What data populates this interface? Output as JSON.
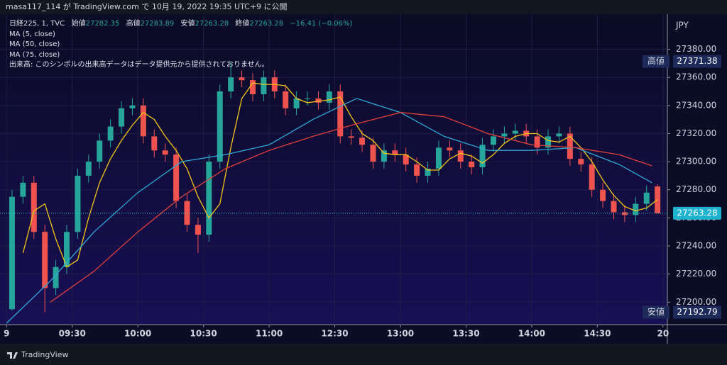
{
  "header": {
    "published": "masa117_114 が TradingView.com で 10月 19, 2022 19:35 UTC+9 に公開"
  },
  "footer": {
    "brand": "TradingView"
  },
  "chart_data": {
    "type": "candlestick",
    "symbol": "日経225, 1, TVC",
    "ohlc_labels": [
      "始値",
      "高値",
      "安値",
      "終値"
    ],
    "change": "−16.41 (−0.06%)",
    "volume_note": "出来高: このシンボルの出来高データはデータ提供元から提供されておりません。",
    "currency": "JPY",
    "up_color": "#26a69a",
    "down_color": "#ef5350",
    "x": [
      2.5,
      7.5,
      12.5,
      17.5,
      22.5,
      27.5,
      32.5,
      37.5,
      42.5,
      47.5,
      52.5,
      57.5,
      62.5,
      67.5,
      72.5,
      77.5,
      82.5,
      87.5,
      92.5,
      97.5,
      102.5,
      107.5,
      112.5,
      117.5,
      122.5,
      127.5,
      132.5,
      137.5,
      142.5,
      147.5,
      152.5,
      157.5,
      162.5,
      167.5,
      172.5,
      177.5,
      182.5,
      187.5,
      192.5,
      197.5,
      202.5,
      207.5,
      212.5,
      217.5,
      222.5,
      227.5,
      232.5,
      237.5,
      242.5,
      247.5,
      252.5,
      257.5,
      262.5,
      267.5,
      272.5,
      277.5,
      282.5,
      287.5,
      292.5,
      297.5
    ],
    "open": [
      27195,
      27275,
      27285,
      27250,
      27210,
      27225,
      27250,
      27290,
      27300,
      27315,
      27325,
      27338,
      27340,
      27318,
      27308,
      27305,
      27272,
      27255,
      27248,
      27300,
      27350,
      27360,
      27358,
      27348,
      27360,
      27350,
      27338,
      27345,
      27345,
      27342,
      27350,
      27318,
      27317,
      27312,
      27300,
      27308,
      27305,
      27298,
      27290,
      27295,
      27310,
      27308,
      27300,
      27296,
      27312,
      27318,
      27320,
      27322,
      27318,
      27310,
      27318,
      27320,
      27302,
      27298,
      27280,
      27272,
      27264,
      27262,
      27270,
      27282.35
    ],
    "high": [
      27280,
      27290,
      27290,
      27255,
      27230,
      27255,
      27295,
      27305,
      27320,
      27330,
      27343,
      27345,
      27345,
      27323,
      27313,
      27310,
      27277,
      27260,
      27305,
      27355,
      27371.38,
      27365,
      27363,
      27365,
      27365,
      27355,
      27350,
      27350,
      27350,
      27355,
      27355,
      27323,
      27322,
      27317,
      27313,
      27313,
      27310,
      27303,
      27300,
      27315,
      27315,
      27313,
      27305,
      27317,
      27323,
      27325,
      27327,
      27327,
      27323,
      27323,
      27325,
      27325,
      27307,
      27303,
      27285,
      27277,
      27269,
      27275,
      27283,
      27283.89
    ],
    "low": [
      27194,
      27270,
      27245,
      27192.79,
      27205,
      27220,
      27245,
      27285,
      27295,
      27310,
      27320,
      27333,
      27313,
      27303,
      27300,
      27267,
      27250,
      27235,
      27243,
      27295,
      27345,
      27353,
      27343,
      27343,
      27345,
      27333,
      27333,
      27340,
      27337,
      27337,
      27313,
      27312,
      27307,
      27295,
      27295,
      27300,
      27293,
      27285,
      27285,
      27290,
      27303,
      27295,
      27291,
      27291,
      27307,
      27313,
      27315,
      27313,
      27305,
      27305,
      27313,
      27297,
      27293,
      27275,
      27267,
      27259,
      27257,
      27257,
      27265,
      27263.28
    ],
    "close": [
      27275,
      27285,
      27250,
      27210,
      27225,
      27250,
      27290,
      27300,
      27315,
      27325,
      27338,
      27340,
      27318,
      27308,
      27305,
      27272,
      27255,
      27248,
      27300,
      27350,
      27360,
      27358,
      27348,
      27360,
      27350,
      27338,
      27345,
      27345,
      27342,
      27350,
      27318,
      27317,
      27312,
      27300,
      27308,
      27305,
      27298,
      27290,
      27295,
      27310,
      27308,
      27300,
      27296,
      27312,
      27318,
      27320,
      27322,
      27318,
      27310,
      27318,
      27320,
      27302,
      27298,
      27280,
      27272,
      27264,
      27262,
      27270,
      27278,
      27263.28
    ],
    "series": [
      {
        "name": "MA (5, close)",
        "color": "#f5c518",
        "values": [
          null,
          27235,
          27265,
          27270,
          27245,
          27225,
          27230,
          27260,
          27285,
          27302,
          27315,
          27326,
          27335,
          27330,
          27318,
          27308,
          27295,
          27275,
          27260,
          27270,
          27310,
          27345,
          27356,
          27355,
          27355,
          27354,
          27345,
          27342,
          27343,
          27344,
          27346,
          27332,
          27320,
          27315,
          27306,
          27305,
          27305,
          27300,
          27294,
          27294,
          27302,
          27306,
          27304,
          27299,
          27305,
          27313,
          27318,
          27320,
          27320,
          27315,
          27314,
          27318,
          27310,
          27300,
          27287,
          27276,
          27268,
          27265,
          27267,
          27273
        ]
      },
      {
        "name": "MA (50, close)",
        "color": "#2fa8d8",
        "x": [
          0,
          20,
          40,
          60,
          80,
          100,
          120,
          140,
          160,
          180,
          200,
          220,
          240,
          260,
          280,
          295
        ],
        "values": [
          27185,
          27215,
          27250,
          27278,
          27300,
          27305,
          27312,
          27330,
          27345,
          27335,
          27318,
          27308,
          27308,
          27310,
          27298,
          27285
        ]
      },
      {
        "name": "MA (75, close)",
        "color": "#e0403a",
        "x": [
          0,
          20,
          40,
          60,
          80,
          100,
          120,
          140,
          160,
          180,
          200,
          220,
          240,
          260,
          280,
          295
        ],
        "values": [
          null,
          27200,
          27222,
          27250,
          27275,
          27295,
          27308,
          27318,
          27327,
          27335,
          27332,
          27320,
          27312,
          27310,
          27305,
          27297
        ]
      }
    ],
    "xlim": [
      -3,
      302
    ],
    "xticks": [
      {
        "value": 0,
        "label": "9"
      },
      {
        "value": 30,
        "label": "09:30"
      },
      {
        "value": 60,
        "label": "10:00"
      },
      {
        "value": 90,
        "label": "10:30"
      },
      {
        "value": 120,
        "label": "11:00"
      },
      {
        "value": 150,
        "label": "12:30"
      },
      {
        "value": 180,
        "label": "13:00"
      },
      {
        "value": 210,
        "label": "13:30"
      },
      {
        "value": 240,
        "label": "14:00"
      },
      {
        "value": 270,
        "label": "14:30"
      },
      {
        "value": 300,
        "label": "20"
      }
    ],
    "ylim": [
      27184,
      27405
    ],
    "yticks": [
      {
        "value": 27200,
        "label": "27200.00"
      },
      {
        "value": 27220,
        "label": "27220.00"
      },
      {
        "value": 27240,
        "label": "27240.00"
      },
      {
        "value": 27260,
        "label": "27260.00"
      },
      {
        "value": 27280,
        "label": "27280.00"
      },
      {
        "value": 27300,
        "label": "27300.00"
      },
      {
        "value": 27320,
        "label": "27320.00"
      },
      {
        "value": 27340,
        "label": "27340.00"
      },
      {
        "value": 27360,
        "label": "27360.00"
      },
      {
        "value": 27380,
        "label": "27380.00"
      }
    ],
    "grid": true
  }
}
